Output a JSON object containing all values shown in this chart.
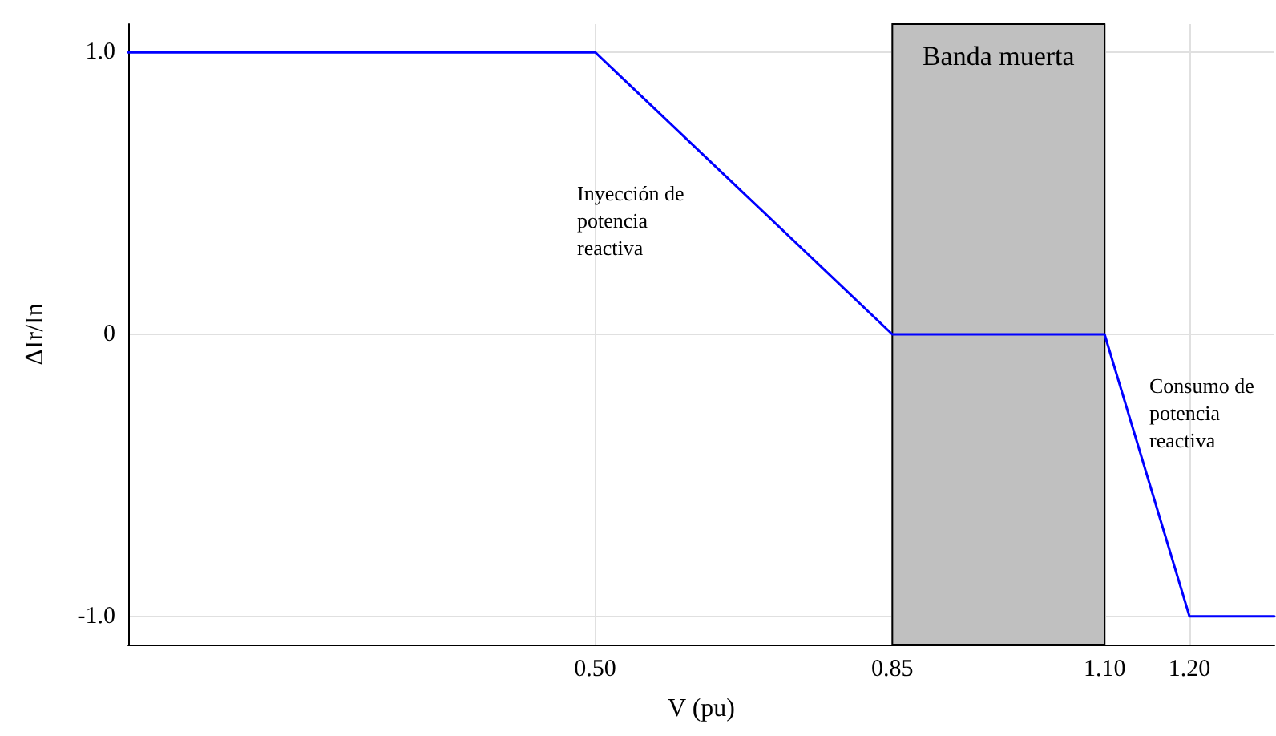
{
  "chart_data": {
    "type": "line",
    "xlabel": "V (pu)",
    "ylabel": "ΔIr/In",
    "x": [
      -0.05,
      0.5,
      0.85,
      1.1,
      1.2,
      1.3
    ],
    "series": [
      {
        "color": "#0000ff",
        "values": [
          1,
          1,
          0,
          0,
          -1,
          -1
        ]
      }
    ],
    "xlim": [
      -0.05,
      1.3
    ],
    "xticks": [
      {
        "value": 0.5,
        "label": "0.50"
      },
      0.85,
      {
        "value": 1.1,
        "label": "1.10"
      },
      {
        "value": 1.2,
        "label": "1.20"
      }
    ],
    "ylim": [
      -1.1,
      1.1
    ],
    "yticks": [
      {
        "value": -1,
        "label": "-1.0"
      },
      0,
      {
        "value": 1,
        "label": "1.0"
      }
    ],
    "grid": true,
    "marker": "none",
    "line_style": "solid",
    "bands": [
      {
        "axis": "x",
        "from": 0.85,
        "to": 1.1,
        "label": "Banda muerta",
        "color": "#c0c0c0"
      }
    ],
    "annotations": [
      "Inyección de\npotencia\nreactiva",
      "Consumo de\npotencia\nreactiva"
    ]
  }
}
